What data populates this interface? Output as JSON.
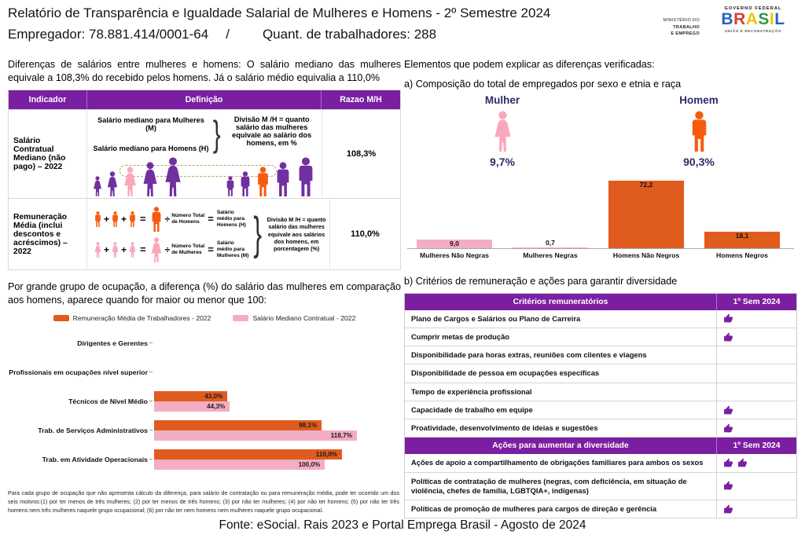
{
  "colors": {
    "header_purple": "#7b1fa2",
    "person_purple": "#7030a0",
    "person_pink": "#f9a8bc",
    "person_orange": "#f75c0e",
    "bar_orange": "#df5c1e",
    "bar_pink": "#f3aec3",
    "navy": "#2e2b69",
    "dashed_box": "#c49a6c",
    "brasil_letters": [
      "#2563c4",
      "#e03a2f",
      "#f2c200",
      "#2d9b41",
      "#f2c200",
      "#2563c4"
    ]
  },
  "symbols": {
    "plus": "+",
    "equals": "=",
    "divide": "÷",
    "brace": "}"
  },
  "header": {
    "title": "Relatório de Transparência e Igualdade Salarial de Mulheres e Homens - 2º Semestre 2024",
    "employer": "Empregador: 78.881.414/0001-64",
    "separator": "/",
    "workers": "Quant. de trabalhadores: 288",
    "ministry": {
      "line1": "MINISTÉRIO DO",
      "line2": "TRABALHO",
      "line3": "E EMPREGO"
    },
    "gov": {
      "top": "GOVERNO FEDERAL",
      "brand": "BRASIL",
      "bottom": "UNIÃO E RECONSTRUÇÃO"
    }
  },
  "left": {
    "intro": "Diferenças de salários entre mulheres e homens: O salário mediano das mulheres equivale a 108,3% do recebido pelos homens. Já o salário médio equivalia a 110,0%",
    "table": {
      "headers": [
        "Indicador",
        "Definição",
        "Razao M/H"
      ],
      "row1": {
        "indicator": "Salário Contratual Mediano (não pago) – 2022",
        "line_women": "Salário mediano para Mulheres (M)",
        "line_men": "Salário mediano para Homens (H)",
        "note": "Divisão M /H = quanto salário das mulheres equivale ao salário dos homens, em %",
        "value": "108,3%"
      },
      "row2": {
        "indicator": "Remuneração Média (inclui descontos e acréscimos) – 2022",
        "men_count": "Número Total de Homens",
        "men_salary": "Salário médio para Homens (H)",
        "women_count": "Número Total de Mulheres",
        "women_salary": "Salário médio para Mulheres (M)",
        "note": "Divisão M /H = quanto salário das mulheres equivale aos salários dos homens, em porcentagem (%)",
        "value": "110,0%"
      }
    },
    "occupation_text": "Por grande grupo de ocupação, a diferença (%) do salário das mulheres em comparação aos homens, aparece quando for maior ou menor que 100:",
    "footnote": "Para cada grupo de ocupação que não apresenta cálculo da diferença, para salário de contratação ou para remuneração média, pode ter ocorrido um dos seis motivos:(1) por ter menos de três mulheres; (2) por ter menos de três homens; (3) por não ter mulheres; (4) por não ter homens; (5) por não ter três homens nem três mulheres naquele grupo ocupacional; (6) por não ter nem homens nem mulheres naquele grupo ocupacional."
  },
  "right": {
    "elements_title": "Elementos que podem explicar as diferenças verificadas:",
    "composition_title": "a) Composição do total de empregados por sexo e etnia e raça",
    "mulher_label": "Mulher",
    "homem_label": "Homem",
    "mulher_pct": "9,7%",
    "homem_pct": "90,3%",
    "criteria_title": "b) Critérios de remuneração e ações para garantir diversidade",
    "criteria_table": {
      "sections": [
        {
          "header": "Critérios remuneratórios",
          "period": "1º Sem 2024",
          "rows": [
            {
              "label": "Plano de Cargos e Salários ou Plano de Carreira",
              "marks": 1
            },
            {
              "label": "Cumprir metas de produção",
              "marks": 1
            },
            {
              "label": "Disponibilidade para horas extras, reuniões com clientes e viagens",
              "marks": 0
            },
            {
              "label": "Disponibilidade de pessoa em ocupações específicas",
              "marks": 0
            },
            {
              "label": "Tempo de experiência profissional",
              "marks": 0
            },
            {
              "label": "Capacidade de trabalho em equipe",
              "marks": 1
            },
            {
              "label": "Proatividade, desenvolvimento de ideias e sugestões",
              "marks": 1
            }
          ]
        },
        {
          "header": "Ações para aumentar a diversidade",
          "period": "1º Sem 2024",
          "rows": [
            {
              "label": "Ações de apoio a compartilhamento de obrigações familiares para ambos os sexos",
              "marks": 2
            },
            {
              "label": "Políticas de contratação de mulheres (negras, com deficiência, em situação de violência, chefes de família, LGBTQIA+, indígenas)",
              "marks": 1
            },
            {
              "label": "Políticas de promoção de mulheres para cargos de direção e gerência",
              "marks": 1
            }
          ]
        }
      ]
    }
  },
  "chart_data": [
    {
      "type": "bar",
      "title": "a) Composição do total de empregados por sexo e etnia e raça",
      "categories": [
        "Mulheres Não Negras",
        "Mulheres Negras",
        "Homens Não Negros",
        "Homens Negros"
      ],
      "values": [
        9.0,
        0.7,
        72.2,
        18.1
      ],
      "value_labels": [
        "9,0",
        "0,7",
        "72,2",
        "18,1"
      ],
      "bar_colors": [
        "#f3aec3",
        "#f3aec3",
        "#df5c1e",
        "#df5c1e"
      ],
      "summary": {
        "mulher_pct": 9.7,
        "homem_pct": 90.3
      },
      "ylim": [
        0,
        80
      ],
      "grid": false,
      "data_labels": true,
      "legend_position": "none"
    },
    {
      "type": "bar",
      "orientation": "horizontal",
      "title": "Diferença (%) do salário das mulheres em comparação aos homens por grande grupo de ocupação",
      "categories": [
        "Dirigentes e Gerentes",
        "Profissionais em ocupações nível superior",
        "Técnicos de Nível Médio",
        "Trab. de Serviços Administrativos",
        "Trab. em Atividade Operacionais"
      ],
      "series": [
        {
          "name": "Remuneração Média de Trabalhadores - 2022",
          "color": "#df5c1e",
          "values": [
            null,
            null,
            43.0,
            98.1,
            110.0
          ],
          "labels": [
            "",
            "",
            "43,0%",
            "98,1%",
            "110,0%"
          ]
        },
        {
          "name": "Salário Mediano Contratual - 2022",
          "color": "#f3aec3",
          "values": [
            null,
            null,
            44.3,
            118.7,
            100.0
          ],
          "labels": [
            "",
            "",
            "44,3%",
            "118,7%",
            "100,0%"
          ]
        }
      ],
      "xlim": [
        0,
        125
      ],
      "grid": false,
      "data_labels": true,
      "legend_position": "top"
    }
  ],
  "footer": {
    "source": "Fonte: eSocial. Rais 2023 e Portal Emprega Brasil - Agosto de 2024"
  }
}
